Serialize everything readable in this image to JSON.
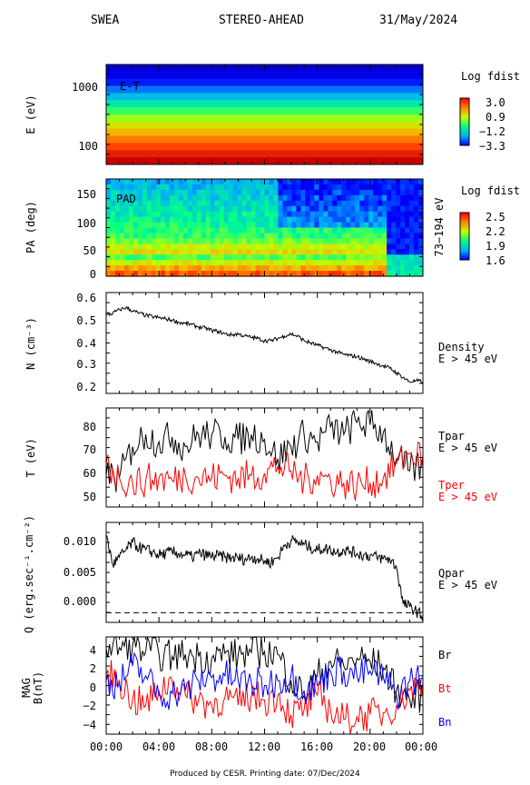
{
  "header": {
    "instrument": "SWEA",
    "spacecraft": "STEREO-AHEAD",
    "date": "31/May/2024"
  },
  "footer": "Produced by CESR.   Printing date: 07/Dec/2024",
  "colors": {
    "black": "#000000",
    "red": "#ff0000",
    "blue": "#0000ff"
  },
  "chart_data": [
    {
      "id": "et",
      "type": "heatmap",
      "label": "E-T",
      "ylabel": "E (eV)",
      "yscale": "log",
      "yticks": [
        "1000",
        "100"
      ],
      "colorbar": {
        "title": "Log fdist",
        "ticks": [
          "3.0",
          "0.9",
          "−1.2",
          "−3.3"
        ],
        "range": [
          -3.3,
          3.0
        ]
      },
      "bands_log_fdist": [
        -3.2,
        -2.7,
        -2.2,
        -1.7,
        -1.2,
        -0.7,
        -0.2,
        0.3,
        0.8,
        1.3,
        1.8,
        2.2,
        2.6,
        3.0
      ]
    },
    {
      "id": "pad",
      "type": "heatmap",
      "label": "PAD",
      "ylabel": "PA (deg)",
      "ylim": [
        0,
        180
      ],
      "yticks": [
        "150",
        "100",
        "50",
        "0"
      ],
      "right_label": "73−194 eV",
      "colorbar": {
        "title": "Log fdist",
        "ticks": [
          "2.5",
          "2.2",
          "1.9",
          "1.6"
        ],
        "range": [
          1.6,
          2.5
        ]
      }
    },
    {
      "id": "density",
      "type": "line",
      "ylabel": "N (cm⁻³)",
      "ylim": [
        0.18,
        0.62
      ],
      "yticks": [
        "0.6",
        "0.5",
        "0.4",
        "0.3",
        "0.2"
      ],
      "legend": [
        "Density",
        "E > 45 eV"
      ],
      "series": [
        {
          "name": "Density",
          "color": "#000000",
          "x": [
            0,
            0.5,
            1,
            1.5,
            2,
            2.5,
            3,
            3.5,
            4,
            4.5,
            5,
            5.5,
            6,
            6.5,
            7,
            7.5,
            8,
            8.5,
            9,
            9.5,
            10,
            10.5,
            11,
            11.5,
            12,
            12.5,
            13,
            13.5,
            14,
            14.5,
            15,
            15.5,
            16,
            16.5,
            17,
            17.5,
            18,
            18.5,
            19,
            19.5,
            20,
            20.5,
            21,
            21.5,
            22,
            22.5,
            23,
            23.5,
            24
          ],
          "y": [
            0.52,
            0.53,
            0.545,
            0.555,
            0.54,
            0.53,
            0.52,
            0.515,
            0.51,
            0.505,
            0.5,
            0.49,
            0.485,
            0.48,
            0.47,
            0.465,
            0.455,
            0.45,
            0.44,
            0.435,
            0.44,
            0.43,
            0.425,
            0.42,
            0.41,
            0.41,
            0.42,
            0.43,
            0.44,
            0.43,
            0.41,
            0.4,
            0.39,
            0.38,
            0.37,
            0.36,
            0.35,
            0.345,
            0.34,
            0.33,
            0.32,
            0.31,
            0.3,
            0.29,
            0.27,
            0.25,
            0.23,
            0.235,
            0.23
          ]
        }
      ]
    },
    {
      "id": "temperature",
      "type": "line",
      "ylabel": "T (eV)",
      "ylim": [
        45,
        86
      ],
      "yticks": [
        "80",
        "70",
        "60",
        "50"
      ],
      "series": [
        {
          "name": "Tpar",
          "sublabel": "E > 45 eV",
          "color": "#000000",
          "x": [
            0,
            1,
            2,
            3,
            4,
            5,
            6,
            7,
            8,
            9,
            10,
            11,
            12,
            13,
            14,
            15,
            16,
            17,
            18,
            19,
            20,
            21,
            22,
            23,
            24
          ],
          "y": [
            58,
            57,
            70,
            75,
            72,
            74,
            70,
            75,
            75,
            74,
            73,
            75,
            73,
            65,
            70,
            75,
            72,
            78,
            75,
            80,
            79,
            76,
            65,
            60,
            62
          ]
        },
        {
          "name": "Tper",
          "sublabel": "E > 45 eV",
          "color": "#ff0000",
          "x": [
            0,
            1,
            2,
            3,
            4,
            5,
            6,
            7,
            8,
            9,
            10,
            11,
            12,
            13,
            14,
            15,
            16,
            17,
            18,
            19,
            20,
            21,
            22,
            23,
            24
          ],
          "y": [
            63,
            57,
            55,
            56,
            57,
            56,
            58,
            57,
            57,
            58,
            57,
            58,
            59,
            62,
            60,
            56,
            58,
            56,
            55,
            54,
            55,
            57,
            63,
            67,
            66
          ]
        }
      ]
    },
    {
      "id": "heatflux",
      "type": "line",
      "ylabel": "Q (erg.sec⁻¹.cm⁻²)",
      "ylim": [
        -0.0013,
        0.0122
      ],
      "yticks": [
        "0.010",
        "0.005",
        "0.000"
      ],
      "zero_line": true,
      "legend": [
        "Qpar",
        "E > 45 eV"
      ],
      "series": [
        {
          "name": "Qpar",
          "color": "#000000",
          "x": [
            0,
            0.5,
            1,
            1.5,
            2,
            2.5,
            3,
            3.5,
            4,
            4.5,
            5,
            5.5,
            6,
            6.5,
            7,
            7.5,
            8,
            8.5,
            9,
            9.5,
            10,
            10.5,
            11,
            11.5,
            12,
            12.5,
            13,
            13.5,
            14,
            14.5,
            15,
            15.5,
            16,
            16.5,
            17,
            17.5,
            18,
            18.5,
            19,
            19.5,
            20,
            20.5,
            21,
            21.5,
            22,
            22.5,
            23,
            23.5,
            24
          ],
          "y": [
            0.0105,
            0.0065,
            0.0075,
            0.0085,
            0.0095,
            0.0088,
            0.0085,
            0.0082,
            0.0078,
            0.008,
            0.0082,
            0.008,
            0.0078,
            0.0075,
            0.008,
            0.0078,
            0.0076,
            0.0077,
            0.0075,
            0.0074,
            0.0074,
            0.0072,
            0.0075,
            0.0073,
            0.007,
            0.0068,
            0.0075,
            0.009,
            0.0098,
            0.0095,
            0.0092,
            0.0088,
            0.0085,
            0.0087,
            0.0085,
            0.0082,
            0.0085,
            0.0083,
            0.008,
            0.0078,
            0.0077,
            0.0075,
            0.0073,
            0.0072,
            0.0062,
            0.0012,
            0.0008,
            0.0002,
            -0.0005
          ]
        }
      ]
    },
    {
      "id": "mag",
      "type": "line",
      "ylabel": [
        "MAG",
        "B(nT)"
      ],
      "ylim": [
        -5,
        5
      ],
      "yticks": [
        "4",
        "2",
        "0",
        "−2",
        "−4"
      ],
      "x_ticks": [
        "00:00",
        "04:00",
        "08:00",
        "12:00",
        "16:00",
        "20:00",
        "00:00"
      ],
      "series": [
        {
          "name": "Br",
          "color": "#000000",
          "x": [
            0,
            1,
            2,
            3,
            4,
            5,
            6,
            7,
            8,
            9,
            10,
            11,
            12,
            13,
            14,
            15,
            16,
            17,
            18,
            19,
            20,
            21,
            22,
            23,
            24
          ],
          "y": [
            3.8,
            3.9,
            4.1,
            3.5,
            3.2,
            3.0,
            3.2,
            3.0,
            2.8,
            3.3,
            3.1,
            3.4,
            3.5,
            3.2,
            0.5,
            -1.0,
            1.0,
            2.5,
            2.0,
            2.8,
            2.5,
            1.8,
            -0.5,
            -1.5,
            -1.0
          ]
        },
        {
          "name": "Bt",
          "color": "#ff0000",
          "x": [
            0,
            1,
            2,
            3,
            4,
            5,
            6,
            7,
            8,
            9,
            10,
            11,
            12,
            13,
            14,
            15,
            16,
            17,
            18,
            19,
            20,
            21,
            22,
            23,
            24
          ],
          "y": [
            1.2,
            0.5,
            -1.5,
            -2.0,
            -0.5,
            0.5,
            -1.0,
            -1.5,
            -2.0,
            -1.2,
            -2.0,
            -1.0,
            -1.5,
            -1.0,
            -3.0,
            -2.5,
            -1.0,
            -2.5,
            -3.5,
            -3.2,
            -3.0,
            -2.8,
            -2.0,
            -0.5,
            0.3
          ]
        },
        {
          "name": "Bn",
          "color": "#0000ff",
          "x": [
            0,
            1,
            2,
            3,
            4,
            5,
            6,
            7,
            8,
            9,
            10,
            11,
            12,
            13,
            14,
            15,
            16,
            17,
            18,
            19,
            20,
            21,
            22,
            23,
            24
          ],
          "y": [
            0.5,
            0.2,
            2.0,
            1.0,
            -1.0,
            -0.8,
            -0.5,
            0.5,
            0.8,
            1.0,
            0.5,
            0.3,
            0.0,
            0.5,
            1.0,
            -0.5,
            0.0,
            1.5,
            1.5,
            1.0,
            1.5,
            0.8,
            -1.0,
            0.5,
            0.8
          ]
        }
      ]
    }
  ]
}
